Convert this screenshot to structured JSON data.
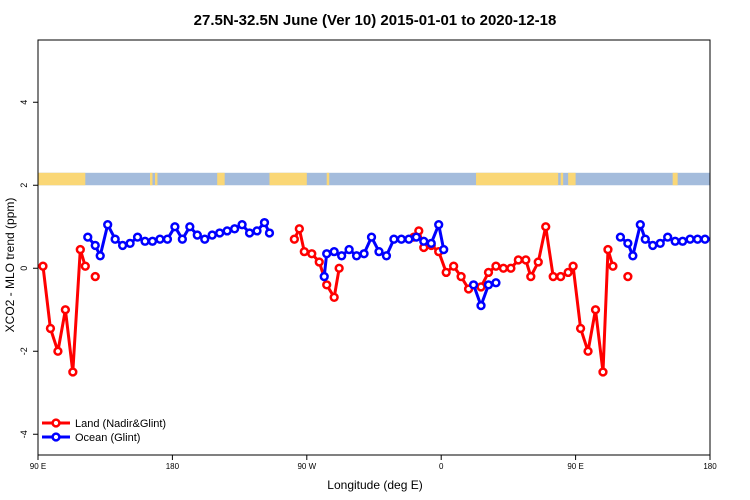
{
  "chart_data": {
    "type": "line",
    "title": "27.5N-32.5N June (Ver 10)   2015-01-01 to 2020-12-18",
    "xlabel": "Longitude (deg E)",
    "ylabel": "XCO2 - MLO trend (ppm)",
    "xlim": [
      -90,
      180
    ],
    "ylim": [
      -4.5,
      5.5
    ],
    "xticks": [
      {
        "value": -90,
        "label": "90 E"
      },
      {
        "value": -36,
        "label": "180"
      },
      {
        "value": 18,
        "label": "90 W"
      },
      {
        "value": 72,
        "label": "0"
      },
      {
        "value": 126,
        "label": "90 E"
      },
      {
        "value": 180,
        "label": "180"
      }
    ],
    "yticks": [
      -4,
      -2,
      0,
      2,
      4
    ],
    "legend": {
      "position": "bottom-left",
      "entries": [
        {
          "label": "Land (Nadir&Glint)",
          "color": "#ff0000"
        },
        {
          "label": "Ocean (Glint)",
          "color": "#0000ff"
        }
      ]
    },
    "surface_strip": {
      "y_range": [
        2.0,
        2.3
      ],
      "land_color": "#fad776",
      "ocean_color": "#a4bcdc",
      "land_segments": [
        [
          -90,
          -71
        ],
        [
          -45,
          -44
        ],
        [
          -43,
          -42
        ],
        [
          -18,
          -15
        ],
        [
          3,
          18
        ],
        [
          26,
          27
        ],
        [
          86,
          119
        ],
        [
          120,
          121
        ],
        [
          123,
          126
        ],
        [
          165,
          167
        ]
      ]
    },
    "series": [
      {
        "name": "Land (Nadir&Glint)",
        "color": "#ff0000",
        "segments": [
          [
            [
              -88,
              0.05
            ],
            [
              -85,
              -1.45
            ],
            [
              -82,
              -2.0
            ],
            [
              -79,
              -1.0
            ],
            [
              -76,
              -2.5
            ],
            [
              -73,
              0.45
            ],
            [
              -71,
              0.05
            ]
          ],
          [
            [
              -67,
              -0.2
            ]
          ],
          [
            [
              13,
              0.7
            ],
            [
              15,
              0.95
            ],
            [
              17,
              0.4
            ],
            [
              20,
              0.35
            ],
            [
              23,
              0.15
            ],
            [
              26,
              -0.4
            ],
            [
              29,
              -0.7
            ],
            [
              31,
              0.0
            ]
          ],
          [
            [
              61,
              0.75
            ],
            [
              63,
              0.9
            ],
            [
              65,
              0.5
            ],
            [
              68,
              0.55
            ],
            [
              71,
              0.4
            ],
            [
              74,
              -0.1
            ],
            [
              77,
              0.05
            ],
            [
              80,
              -0.2
            ],
            [
              83,
              -0.5
            ]
          ],
          [
            [
              88,
              -0.45
            ],
            [
              91,
              -0.1
            ],
            [
              94,
              0.05
            ],
            [
              97,
              0.0
            ],
            [
              100,
              0.0
            ],
            [
              103,
              0.2
            ],
            [
              106,
              0.2
            ],
            [
              108,
              -0.2
            ],
            [
              111,
              0.15
            ],
            [
              114,
              1.0
            ],
            [
              117,
              -0.2
            ],
            [
              120,
              -0.2
            ],
            [
              123,
              -0.1
            ],
            [
              125,
              0.05
            ],
            [
              128,
              -1.45
            ],
            [
              131,
              -2.0
            ],
            [
              134,
              -1.0
            ],
            [
              137,
              -2.5
            ],
            [
              139,
              0.45
            ],
            [
              141,
              0.05
            ]
          ],
          [
            [
              147,
              -0.2
            ]
          ]
        ]
      },
      {
        "name": "Ocean (Glint)",
        "color": "#0000ff",
        "segments": [
          [
            [
              -70,
              0.75
            ],
            [
              -67,
              0.55
            ],
            [
              -65,
              0.3
            ],
            [
              -62,
              1.05
            ],
            [
              -59,
              0.7
            ],
            [
              -56,
              0.55
            ],
            [
              -53,
              0.6
            ],
            [
              -50,
              0.75
            ],
            [
              -47,
              0.65
            ],
            [
              -44,
              0.65
            ],
            [
              -41,
              0.7
            ],
            [
              -38,
              0.7
            ],
            [
              -35,
              1.0
            ],
            [
              -32,
              0.7
            ],
            [
              -29,
              1.0
            ],
            [
              -26,
              0.8
            ],
            [
              -23,
              0.7
            ],
            [
              -20,
              0.8
            ],
            [
              -17,
              0.85
            ],
            [
              -14,
              0.9
            ],
            [
              -11,
              0.95
            ],
            [
              -8,
              1.05
            ],
            [
              -5,
              0.85
            ],
            [
              -2,
              0.9
            ],
            [
              1,
              1.1
            ],
            [
              3,
              0.85
            ]
          ],
          [
            [
              25,
              -0.2
            ],
            [
              26,
              0.35
            ],
            [
              29,
              0.4
            ],
            [
              32,
              0.3
            ],
            [
              35,
              0.45
            ],
            [
              38,
              0.3
            ],
            [
              41,
              0.35
            ],
            [
              44,
              0.75
            ],
            [
              47,
              0.4
            ],
            [
              50,
              0.3
            ],
            [
              53,
              0.7
            ],
            [
              56,
              0.7
            ],
            [
              59,
              0.7
            ],
            [
              62,
              0.75
            ],
            [
              65,
              0.65
            ],
            [
              68,
              0.6
            ],
            [
              71,
              1.05
            ],
            [
              73,
              0.45
            ]
          ],
          [
            [
              85,
              -0.4
            ],
            [
              88,
              -0.9
            ],
            [
              91,
              -0.4
            ],
            [
              94,
              -0.35
            ]
          ],
          [
            [
              144,
              0.75
            ],
            [
              147,
              0.6
            ],
            [
              149,
              0.3
            ],
            [
              152,
              1.05
            ],
            [
              154,
              0.7
            ],
            [
              157,
              0.55
            ],
            [
              160,
              0.6
            ],
            [
              163,
              0.75
            ],
            [
              166,
              0.65
            ],
            [
              169,
              0.65
            ],
            [
              172,
              0.7
            ],
            [
              175,
              0.7
            ],
            [
              178,
              0.7
            ]
          ]
        ]
      }
    ]
  }
}
